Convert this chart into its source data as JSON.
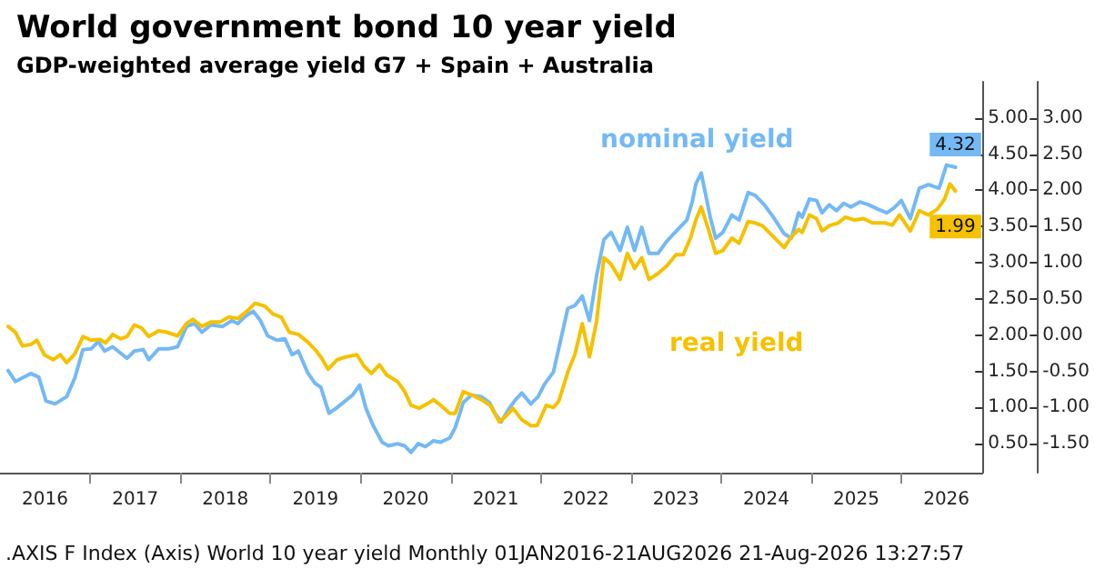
{
  "chart_data": {
    "type": "line",
    "title": "World government bond 10 year yield",
    "subtitle": "GDP-weighted average yield G7 + Spain + Australia",
    "annotations": [
      ".AXIS F Index (Axis) World 10 year yield Monthly 01JAN2016-21AUG2026 21-Aug-2026 13:27:57"
    ],
    "xlim": [
      2016,
      2026.9
    ],
    "xticks": [
      {
        "value": 2016.5,
        "label": "2016"
      },
      {
        "value": 2017,
        "label": null
      },
      {
        "value": 2017.5,
        "label": "2017"
      },
      {
        "value": 2018,
        "label": null
      },
      {
        "value": 2018.5,
        "label": "2018"
      },
      {
        "value": 2019,
        "label": null
      },
      {
        "value": 2019.5,
        "label": "2019"
      },
      {
        "value": 2020,
        "label": null
      },
      {
        "value": 2020.5,
        "label": "2020"
      },
      {
        "value": 2021,
        "label": null
      },
      {
        "value": 2021.5,
        "label": "2021"
      },
      {
        "value": 2022,
        "label": null
      },
      {
        "value": 2022.5,
        "label": "2022"
      },
      {
        "value": 2023,
        "label": null
      },
      {
        "value": 2023.5,
        "label": "2023"
      },
      {
        "value": 2024,
        "label": null
      },
      {
        "value": 2024.5,
        "label": "2024"
      },
      {
        "value": 2025,
        "label": null
      },
      {
        "value": 2025.5,
        "label": "2025"
      },
      {
        "value": 2026,
        "label": null
      },
      {
        "value": 2026.5,
        "label": "2026"
      }
    ],
    "ylim": [
      0.1,
      5.5
    ],
    "yticks": [
      {
        "value": 0.5,
        "label": "0.50"
      },
      {
        "value": 1,
        "label": "1.00"
      },
      {
        "value": 1.5,
        "label": "1.50"
      },
      {
        "value": 2,
        "label": "2.00"
      },
      {
        "value": 2.5,
        "label": "2.50"
      },
      {
        "value": 3,
        "label": "3.00"
      },
      {
        "value": 3.5,
        "label": "3.50"
      },
      {
        "value": 4,
        "label": "4.00"
      },
      {
        "value": 4.5,
        "label": "4.50"
      },
      {
        "value": 5,
        "label": "5.00"
      }
    ],
    "y2lim": [
      -1.9,
      3.5
    ],
    "y2ticks": [
      {
        "value": -1.5,
        "label": "-1.50"
      },
      {
        "value": -1,
        "label": "-1.00"
      },
      {
        "value": -0.5,
        "label": "-0.50"
      },
      {
        "value": 0,
        "label": "0.00"
      },
      {
        "value": 0.5,
        "label": "0.50"
      },
      {
        "value": 1,
        "label": "1.00"
      },
      {
        "value": 1.5,
        "label": "1.50"
      },
      {
        "value": 2,
        "label": "2.00"
      },
      {
        "value": 2.5,
        "label": "2.50"
      },
      {
        "value": 3,
        "label": "3.00"
      }
    ],
    "grid": false,
    "legend": false,
    "marker": "none",
    "line_style": "solid",
    "series": [
      {
        "name": "nominal yield",
        "color": "#74b9f5",
        "x": [
          2016.09,
          2016.17,
          2016.34,
          2016.43,
          2016.51,
          2016.61,
          2016.74,
          2016.83,
          2016.92,
          2017.01,
          2017.09,
          2017.16,
          2017.25,
          2017.41,
          2017.49,
          2017.59,
          2017.65,
          2017.76,
          2017.87,
          2017.97,
          2018.07,
          2018.16,
          2018.24,
          2018.34,
          2018.47,
          2018.57,
          2018.64,
          2018.72,
          2018.81,
          2018.89,
          2018.97,
          2019.07,
          2019.16,
          2019.24,
          2019.31,
          2019.41,
          2019.49,
          2019.56,
          2019.65,
          2019.74,
          2019.83,
          2019.91,
          2019.99,
          2020.06,
          2020.14,
          2020.24,
          2020.31,
          2020.41,
          2020.49,
          2020.56,
          2020.64,
          2020.72,
          2020.81,
          2020.89,
          2020.99,
          2021.05,
          2021.14,
          2021.23,
          2021.34,
          2021.43,
          2021.49,
          2021.56,
          2021.64,
          2021.72,
          2021.79,
          2021.89,
          2021.97,
          2022.04,
          2022.14,
          2022.3,
          2022.38,
          2022.46,
          2022.54,
          2022.62,
          2022.7,
          2022.78,
          2022.88,
          2022.96,
          2023.04,
          2023.12,
          2023.2,
          2023.3,
          2023.4,
          2023.52,
          2023.62,
          2023.68,
          2023.72,
          2023.78,
          2023.88,
          2023.94,
          2024.02,
          2024.12,
          2024.2,
          2024.3,
          2024.38,
          2024.48,
          2024.58,
          2024.7,
          2024.78,
          2024.86,
          2024.9,
          2024.98,
          2025.06,
          2025.12,
          2025.2,
          2025.28,
          2025.36,
          2025.44,
          2025.54,
          2025.64,
          2025.74,
          2025.84,
          2025.92,
          2026.0,
          2026.1,
          2026.2,
          2026.3,
          2026.42,
          2026.5,
          2026.6
        ],
        "values": [
          1.51,
          1.36,
          1.47,
          1.42,
          1.09,
          1.05,
          1.15,
          1.41,
          1.8,
          1.81,
          1.91,
          1.78,
          1.84,
          1.68,
          1.78,
          1.8,
          1.66,
          1.81,
          1.81,
          1.84,
          2.12,
          2.16,
          2.04,
          2.14,
          2.12,
          2.2,
          2.16,
          2.26,
          2.33,
          2.2,
          1.99,
          1.93,
          1.95,
          1.73,
          1.78,
          1.49,
          1.34,
          1.28,
          0.92,
          1.0,
          1.09,
          1.17,
          1.31,
          0.99,
          0.75,
          0.52,
          0.47,
          0.5,
          0.47,
          0.38,
          0.5,
          0.46,
          0.54,
          0.52,
          0.58,
          0.72,
          1.07,
          1.17,
          1.15,
          1.07,
          0.92,
          0.8,
          0.97,
          1.11,
          1.2,
          1.05,
          1.15,
          1.32,
          1.49,
          2.37,
          2.41,
          2.54,
          2.2,
          2.83,
          3.32,
          3.42,
          3.17,
          3.49,
          3.17,
          3.49,
          3.13,
          3.13,
          3.3,
          3.46,
          3.59,
          3.84,
          4.09,
          4.24,
          3.63,
          3.34,
          3.42,
          3.66,
          3.59,
          3.97,
          3.93,
          3.8,
          3.63,
          3.4,
          3.34,
          3.69,
          3.63,
          3.88,
          3.86,
          3.69,
          3.8,
          3.72,
          3.82,
          3.77,
          3.84,
          3.8,
          3.74,
          3.69,
          3.76,
          3.86,
          3.61,
          4.03,
          4.08,
          4.03,
          4.35,
          4.32
        ],
        "value_labels": [
          null,
          null,
          null,
          null,
          null,
          null,
          null,
          null,
          null,
          null,
          null,
          null,
          null,
          null,
          null,
          null,
          null,
          null,
          null,
          null,
          null,
          null,
          null,
          null,
          null,
          null,
          null,
          null,
          null,
          null,
          null,
          null,
          null,
          null,
          null,
          null,
          null,
          null,
          null,
          null,
          null,
          null,
          null,
          null,
          null,
          null,
          null,
          null,
          null,
          null,
          null,
          null,
          null,
          null,
          null,
          null,
          null,
          null,
          null,
          null,
          null,
          null,
          null,
          null,
          null,
          null,
          null,
          null,
          null,
          null,
          null,
          null,
          null,
          null,
          null,
          null,
          null,
          null,
          null,
          null,
          null,
          null,
          null,
          null,
          null,
          null,
          null,
          null,
          null,
          null,
          null,
          null,
          null,
          null,
          null,
          null,
          null,
          null,
          null,
          null,
          null,
          null,
          null,
          null,
          null,
          null,
          null,
          null,
          null,
          null,
          null,
          null,
          null,
          null,
          null,
          null,
          null,
          null,
          null,
          "4.32"
        ]
      },
      {
        "name": "real yield",
        "color": "#f5c100",
        "axis": "y2",
        "x": [
          2016.09,
          2016.17,
          2016.25,
          2016.34,
          2016.41,
          2016.49,
          2016.59,
          2016.67,
          2016.74,
          2016.83,
          2016.92,
          2017.01,
          2017.11,
          2017.17,
          2017.25,
          2017.34,
          2017.41,
          2017.49,
          2017.57,
          2017.65,
          2017.76,
          2017.85,
          2017.97,
          2018.07,
          2018.14,
          2018.24,
          2018.34,
          2018.44,
          2018.54,
          2018.64,
          2018.74,
          2018.83,
          2018.94,
          2019.03,
          2019.12,
          2019.21,
          2019.31,
          2019.41,
          2019.51,
          2019.57,
          2019.64,
          2019.74,
          2019.84,
          2019.96,
          2020.04,
          2020.12,
          2020.21,
          2020.29,
          2020.41,
          2020.49,
          2020.56,
          2020.65,
          2020.74,
          2020.81,
          2020.89,
          2020.99,
          2021.05,
          2021.14,
          2021.24,
          2021.34,
          2021.44,
          2021.54,
          2021.63,
          2021.69,
          2021.79,
          2021.89,
          2021.96,
          2022.06,
          2022.14,
          2022.2,
          2022.3,
          2022.38,
          2022.46,
          2022.54,
          2022.62,
          2022.7,
          2022.78,
          2022.88,
          2022.96,
          2023.04,
          2023.12,
          2023.2,
          2023.3,
          2023.4,
          2023.5,
          2023.58,
          2023.66,
          2023.72,
          2023.78,
          2023.86,
          2023.94,
          2024.02,
          2024.12,
          2024.2,
          2024.3,
          2024.38,
          2024.46,
          2024.58,
          2024.7,
          2024.78,
          2024.86,
          2024.9,
          2024.98,
          2025.06,
          2025.12,
          2025.2,
          2025.3,
          2025.38,
          2025.48,
          2025.58,
          2025.68,
          2025.82,
          2025.9,
          2025.98,
          2026.1,
          2026.2,
          2026.3,
          2026.4,
          2026.48,
          2026.54,
          2026.6
        ],
        "values": [
          0.12,
          0.04,
          -0.15,
          -0.13,
          -0.07,
          -0.27,
          -0.34,
          -0.27,
          -0.38,
          -0.26,
          -0.02,
          -0.07,
          -0.06,
          -0.11,
          0.01,
          -0.05,
          -0.02,
          0.14,
          0.1,
          -0.02,
          0.06,
          0.04,
          -0.01,
          0.16,
          0.22,
          0.12,
          0.18,
          0.18,
          0.25,
          0.23,
          0.33,
          0.44,
          0.4,
          0.29,
          0.25,
          0.04,
          0.01,
          -0.09,
          -0.22,
          -0.32,
          -0.47,
          -0.34,
          -0.3,
          -0.27,
          -0.43,
          -0.53,
          -0.41,
          -0.55,
          -0.64,
          -0.78,
          -0.97,
          -1.01,
          -0.95,
          -0.89,
          -0.97,
          -1.08,
          -1.08,
          -0.78,
          -0.83,
          -0.89,
          -0.97,
          -1.2,
          -1.1,
          -1.01,
          -1.17,
          -1.25,
          -1.25,
          -0.97,
          -1.0,
          -0.91,
          -0.51,
          -0.26,
          0.16,
          -0.3,
          0.2,
          1.07,
          0.98,
          0.77,
          1.13,
          0.92,
          1.07,
          0.77,
          0.85,
          0.96,
          1.11,
          1.11,
          1.34,
          1.59,
          1.77,
          1.46,
          1.13,
          1.17,
          1.34,
          1.27,
          1.57,
          1.55,
          1.51,
          1.36,
          1.21,
          1.36,
          1.46,
          1.42,
          1.66,
          1.61,
          1.44,
          1.51,
          1.55,
          1.63,
          1.59,
          1.61,
          1.55,
          1.55,
          1.52,
          1.66,
          1.44,
          1.72,
          1.66,
          1.74,
          1.88,
          2.09,
          1.99
        ],
        "value_labels": [
          null,
          null,
          null,
          null,
          null,
          null,
          null,
          null,
          null,
          null,
          null,
          null,
          null,
          null,
          null,
          null,
          null,
          null,
          null,
          null,
          null,
          null,
          null,
          null,
          null,
          null,
          null,
          null,
          null,
          null,
          null,
          null,
          null,
          null,
          null,
          null,
          null,
          null,
          null,
          null,
          null,
          null,
          null,
          null,
          null,
          null,
          null,
          null,
          null,
          null,
          null,
          null,
          null,
          null,
          null,
          null,
          null,
          null,
          null,
          null,
          null,
          null,
          null,
          null,
          null,
          null,
          null,
          null,
          null,
          null,
          null,
          null,
          null,
          null,
          null,
          null,
          null,
          null,
          null,
          null,
          null,
          null,
          null,
          null,
          null,
          null,
          null,
          null,
          null,
          null,
          null,
          null,
          null,
          null,
          null,
          null,
          null,
          null,
          null,
          null,
          null,
          null,
          null,
          null,
          null,
          null,
          null,
          null,
          null,
          null,
          null,
          null,
          null,
          null,
          null,
          null,
          null,
          null,
          null,
          null,
          "1.99"
        ]
      }
    ]
  }
}
